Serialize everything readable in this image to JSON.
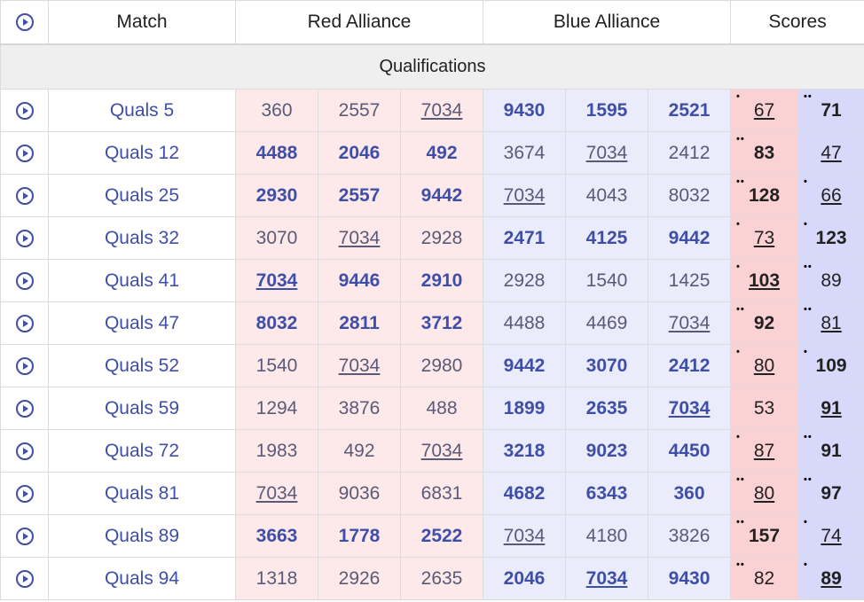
{
  "header": {
    "match": "Match",
    "red": "Red Alliance",
    "blue": "Blue Alliance",
    "scores": "Scores"
  },
  "section_label": "Qualifications",
  "colors": {
    "accent": "#3f4fa8",
    "red_bg": "#fde9ea",
    "blue_bg": "#eaebfb",
    "red_score_bg": "#fbd2d4",
    "blue_score_bg": "#d8d8fb"
  },
  "rows": [
    {
      "match": "Quals 5",
      "red": [
        "360",
        "2557",
        "7034"
      ],
      "blue": [
        "9430",
        "1595",
        "2521"
      ],
      "red_score": "67",
      "blue_score": "71",
      "red_rp": "•",
      "blue_rp": "••",
      "win": "blue",
      "me_team": "7034",
      "me_side": "red"
    },
    {
      "match": "Quals 12",
      "red": [
        "4488",
        "2046",
        "492"
      ],
      "blue": [
        "3674",
        "7034",
        "2412"
      ],
      "red_score": "83",
      "blue_score": "47",
      "red_rp": "••",
      "blue_rp": "",
      "win": "red",
      "me_team": "7034",
      "me_side": "blue"
    },
    {
      "match": "Quals 25",
      "red": [
        "2930",
        "2557",
        "9442"
      ],
      "blue": [
        "7034",
        "4043",
        "8032"
      ],
      "red_score": "128",
      "blue_score": "66",
      "red_rp": "••",
      "blue_rp": "•",
      "win": "red",
      "me_team": "7034",
      "me_side": "blue"
    },
    {
      "match": "Quals 32",
      "red": [
        "3070",
        "7034",
        "2928"
      ],
      "blue": [
        "2471",
        "4125",
        "9442"
      ],
      "red_score": "73",
      "blue_score": "123",
      "red_rp": "•",
      "blue_rp": "•",
      "win": "blue",
      "me_team": "7034",
      "me_side": "red"
    },
    {
      "match": "Quals 41",
      "red": [
        "7034",
        "9446",
        "2910"
      ],
      "blue": [
        "2928",
        "1540",
        "1425"
      ],
      "red_score": "103",
      "blue_score": "89",
      "red_rp": "•",
      "blue_rp": "••",
      "win": "red",
      "me_team": "7034",
      "me_side": "red"
    },
    {
      "match": "Quals 47",
      "red": [
        "8032",
        "2811",
        "3712"
      ],
      "blue": [
        "4488",
        "4469",
        "7034"
      ],
      "red_score": "92",
      "blue_score": "81",
      "red_rp": "••",
      "blue_rp": "••",
      "win": "red",
      "me_team": "7034",
      "me_side": "blue"
    },
    {
      "match": "Quals 52",
      "red": [
        "1540",
        "7034",
        "2980"
      ],
      "blue": [
        "9442",
        "3070",
        "2412"
      ],
      "red_score": "80",
      "blue_score": "109",
      "red_rp": "•",
      "blue_rp": "•",
      "win": "blue",
      "me_team": "7034",
      "me_side": "red"
    },
    {
      "match": "Quals 59",
      "red": [
        "1294",
        "3876",
        "488"
      ],
      "blue": [
        "1899",
        "2635",
        "7034"
      ],
      "red_score": "53",
      "blue_score": "91",
      "red_rp": "",
      "blue_rp": "",
      "win": "blue",
      "me_team": "7034",
      "me_side": "blue"
    },
    {
      "match": "Quals 72",
      "red": [
        "1983",
        "492",
        "7034"
      ],
      "blue": [
        "3218",
        "9023",
        "4450"
      ],
      "red_score": "87",
      "blue_score": "91",
      "red_rp": "•",
      "blue_rp": "••",
      "win": "blue",
      "me_team": "7034",
      "me_side": "red"
    },
    {
      "match": "Quals 81",
      "red": [
        "7034",
        "9036",
        "6831"
      ],
      "blue": [
        "4682",
        "6343",
        "360"
      ],
      "red_score": "80",
      "blue_score": "97",
      "red_rp": "••",
      "blue_rp": "••",
      "win": "blue",
      "me_team": "7034",
      "me_side": "red"
    },
    {
      "match": "Quals 89",
      "red": [
        "3663",
        "1778",
        "2522"
      ],
      "blue": [
        "7034",
        "4180",
        "3826"
      ],
      "red_score": "157",
      "blue_score": "74",
      "red_rp": "••",
      "blue_rp": "•",
      "win": "red",
      "me_team": "7034",
      "me_side": "blue"
    },
    {
      "match": "Quals 94",
      "red": [
        "1318",
        "2926",
        "2635"
      ],
      "blue": [
        "2046",
        "7034",
        "9430"
      ],
      "red_score": "82",
      "blue_score": "89",
      "red_rp": "••",
      "blue_rp": "•",
      "win": "blue",
      "me_team": "7034",
      "me_side": "blue"
    }
  ]
}
